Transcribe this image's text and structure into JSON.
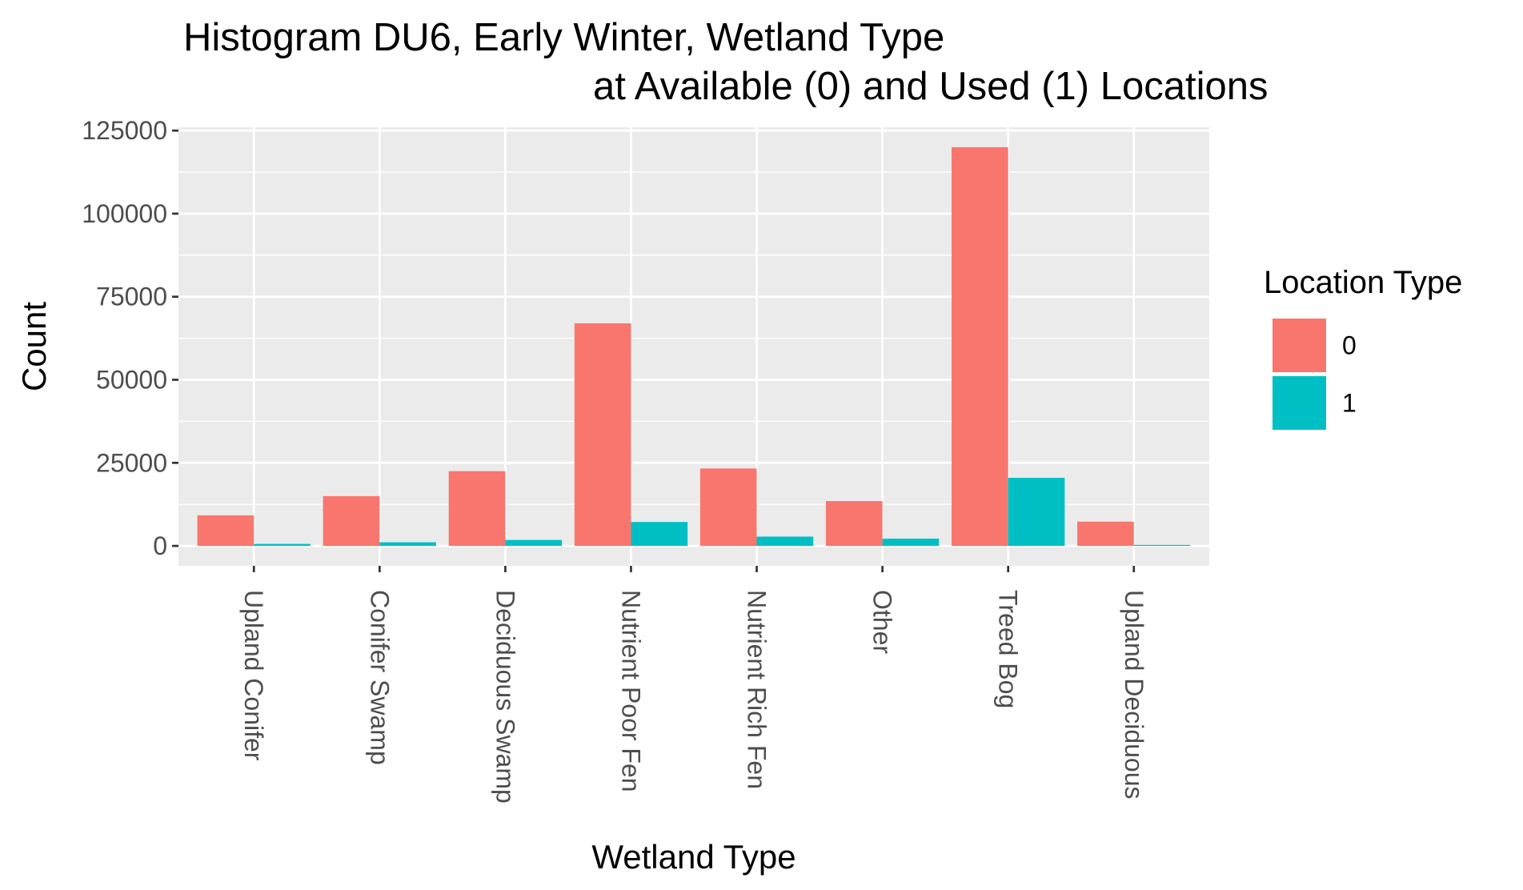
{
  "chart_data": {
    "type": "bar",
    "title_line1": "Histogram DU6, Early Winter, Wetland Type",
    "title_line2": "at Available (0) and Used (1) Locations",
    "xlabel": "Wetland Type",
    "ylabel": "Count",
    "categories": [
      "Upland Conifer",
      "Conifer Swamp",
      "Deciduous Swamp",
      "Nutrient Poor Fen",
      "Nutrient Rich Fen",
      "Other",
      "Treed Bog",
      "Upland Deciduous"
    ],
    "series": [
      {
        "name": "0",
        "color": "#F8766D",
        "values": [
          9200,
          15000,
          22500,
          67000,
          23300,
          13500,
          120000,
          7300
        ]
      },
      {
        "name": "1",
        "color": "#00BFC4",
        "values": [
          600,
          1100,
          1800,
          7200,
          2800,
          2200,
          20500,
          300
        ]
      }
    ],
    "ylim": [
      -6000,
      126000
    ],
    "yticks": [
      0,
      25000,
      50000,
      75000,
      100000,
      125000
    ],
    "ytick_labels": [
      "0",
      "25000",
      "50000",
      "75000",
      "100000",
      "125000"
    ],
    "legend": {
      "title": "Location Type",
      "position": "right"
    },
    "grid": true,
    "panel_background": "#EBEBEB"
  }
}
